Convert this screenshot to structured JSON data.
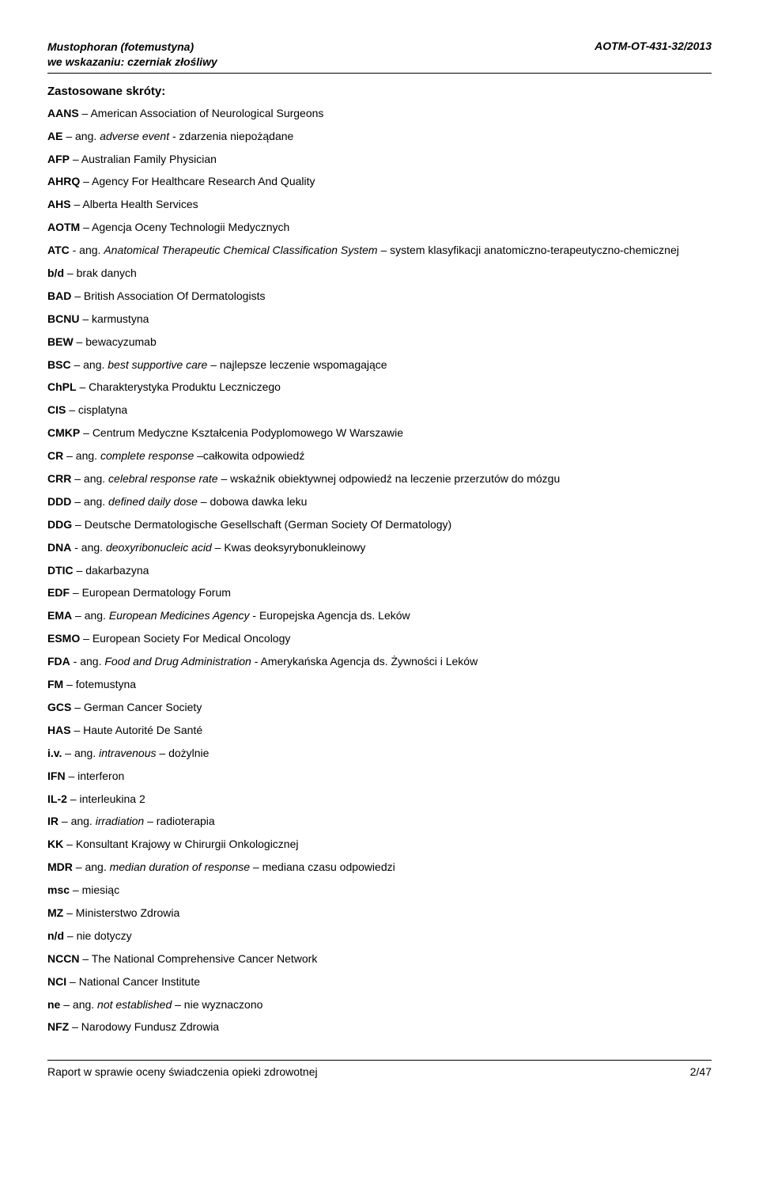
{
  "header": {
    "title_line1": "Mustophoran (fotemustyna)",
    "title_line2": "we wskazaniu: czerniak złośliwy",
    "doc_ref": "AOTM-OT-431-32/2013"
  },
  "section_title": "Zastosowane skróty:",
  "entries": [
    {
      "abbr": "AANS",
      "sep": " – ",
      "def": "American Association of Neurological Surgeons"
    },
    {
      "abbr": "AE",
      "sep": " – ang. ",
      "src": "adverse event",
      "tail": " - zdarzenia niepożądane"
    },
    {
      "abbr": "AFP",
      "sep": " – ",
      "def": "Australian Family Physician"
    },
    {
      "abbr": "AHRQ",
      "sep": " – ",
      "def": "Agency For Healthcare Research And Quality"
    },
    {
      "abbr": "AHS",
      "sep": " – ",
      "def": "Alberta Health Services"
    },
    {
      "abbr": "AOTM",
      "sep": " – ",
      "def": "Agencja Oceny Technologii Medycznych"
    },
    {
      "abbr": "ATC",
      "sep": " - ang. ",
      "src": "Anatomical Therapeutic Chemical Classification System",
      "tail": " – system klasyfikacji anatomiczno-terapeutyczno-chemicznej"
    },
    {
      "abbr": "b/d",
      "sep": " – ",
      "def": "brak danych"
    },
    {
      "abbr": "BAD",
      "sep": " – ",
      "def": "British Association Of Dermatologists"
    },
    {
      "abbr": "BCNU",
      "sep": " – ",
      "def": "karmustyna"
    },
    {
      "abbr": "BEW",
      "sep": " – ",
      "def": "bewacyzumab"
    },
    {
      "abbr": "BSC",
      "sep": " – ang. ",
      "src": "best supportive care",
      "tail": " – najlepsze leczenie wspomagające"
    },
    {
      "abbr": "ChPL",
      "sep": " – ",
      "def": "Charakterystyka Produktu Leczniczego"
    },
    {
      "abbr": "CIS",
      "sep": " – ",
      "def": "cisplatyna"
    },
    {
      "abbr": "CMKP",
      "sep": " – ",
      "def": "Centrum Medyczne Kształcenia Podyplomowego W Warszawie"
    },
    {
      "abbr": "CR",
      "sep": " – ang. ",
      "src": "complete response",
      "tail": " –całkowita odpowiedź"
    },
    {
      "abbr": "CRR",
      "sep": " – ang. ",
      "src": "celebral response rate",
      "tail": " – wskaźnik obiektywnej odpowiedź na leczenie  przerzutów do mózgu"
    },
    {
      "abbr": "DDD",
      "sep": " – ang. ",
      "src": "defined daily dose",
      "tail": " – dobowa dawka leku"
    },
    {
      "abbr": "DDG",
      "sep": " – ",
      "def": "Deutsche Dermatologische Gesellschaft (German Society Of Dermatology)"
    },
    {
      "abbr": "DNA",
      "sep": " - ang. ",
      "src": "deoxyribonucleic acid",
      "tail": " – Kwas deoksyrybonukleinowy"
    },
    {
      "abbr": "DTIC",
      "sep": " – ",
      "def": "dakarbazyna"
    },
    {
      "abbr": "EDF",
      "sep": " – ",
      "def": "European Dermatology Forum"
    },
    {
      "abbr": "EMA",
      "sep": " – ang. ",
      "src": "European Medicines Agency",
      "tail": " - Europejska Agencja ds. Leków"
    },
    {
      "abbr": "ESMO",
      "sep": " – ",
      "def": "European Society For Medical Oncology"
    },
    {
      "abbr": "FDA",
      "sep": " - ang. ",
      "src": "Food and Drug Administration",
      "tail": " - Amerykańska Agencja ds. Żywności i Leków"
    },
    {
      "abbr": "FM",
      "sep": " – ",
      "def": "fotemustyna"
    },
    {
      "abbr": "GCS",
      "sep": " – ",
      "def": "German Cancer Society"
    },
    {
      "abbr": "HAS",
      "sep": " – ",
      "def": "Haute Autorité De Santé"
    },
    {
      "abbr": "i.v.",
      "sep": " – ang. ",
      "src": "intravenous",
      "tail": " – dożylnie"
    },
    {
      "abbr": "IFN",
      "sep": " – ",
      "def": "interferon"
    },
    {
      "abbr": "IL-2",
      "sep": " – ",
      "def": "interleukina 2"
    },
    {
      "abbr": "IR",
      "sep": " – ang. ",
      "src": "irradiation",
      "tail": " – radioterapia"
    },
    {
      "abbr": "KK",
      "sep": " – ",
      "def": "Konsultant Krajowy w Chirurgii Onkologicznej"
    },
    {
      "abbr": "MDR",
      "sep": " – ang. ",
      "src": "median duration of response",
      "tail": " – mediana czasu odpowiedzi"
    },
    {
      "abbr": "msc",
      "sep": " – ",
      "def": "miesiąc"
    },
    {
      "abbr": "MZ",
      "sep": " – ",
      "def": "Ministerstwo Zdrowia"
    },
    {
      "abbr": "n/d",
      "sep": " – ",
      "def": "nie dotyczy"
    },
    {
      "abbr": "NCCN",
      "sep": " – ",
      "def": "The National Comprehensive Cancer Network"
    },
    {
      "abbr": "NCI",
      "sep": " – ",
      "def": "National Cancer Institute"
    },
    {
      "abbr": "ne",
      "sep": " – ang. ",
      "src": "not established",
      "tail": " – nie wyznaczono"
    },
    {
      "abbr": "NFZ",
      "sep": " – ",
      "def": "Narodowy Fundusz Zdrowia"
    }
  ],
  "footer": {
    "left": "Raport w sprawie oceny świadczenia opieki zdrowotnej",
    "right": "2/47"
  }
}
